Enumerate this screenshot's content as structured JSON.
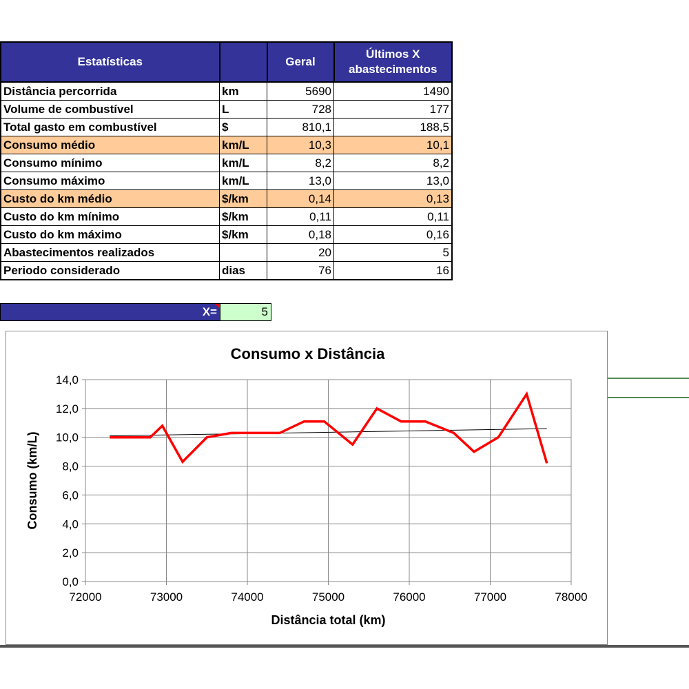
{
  "table": {
    "headers": [
      "Estatísticas",
      "",
      "Geral",
      "Últimos X abastecimentos"
    ],
    "rows": [
      {
        "label": "Distância percorrida",
        "unit": "km",
        "geral": "5690",
        "ultimos": "1490",
        "highlight": false
      },
      {
        "label": "Volume de combustível",
        "unit": "L",
        "geral": "728",
        "ultimos": "177",
        "highlight": false
      },
      {
        "label": "Total gasto em combustível",
        "unit": "$",
        "geral": "810,1",
        "ultimos": "188,5",
        "highlight": false
      },
      {
        "label": "Consumo médio",
        "unit": "km/L",
        "geral": "10,3",
        "ultimos": "10,1",
        "highlight": true
      },
      {
        "label": "Consumo mínimo",
        "unit": "km/L",
        "geral": "8,2",
        "ultimos": "8,2",
        "highlight": false
      },
      {
        "label": "Consumo máximo",
        "unit": "km/L",
        "geral": "13,0",
        "ultimos": "13,0",
        "highlight": false
      },
      {
        "label": "Custo do km médio",
        "unit": "$/km",
        "geral": "0,14",
        "ultimos": "0,13",
        "highlight": true
      },
      {
        "label": "Custo do km mínimo",
        "unit": "$/km",
        "geral": "0,11",
        "ultimos": "0,11",
        "highlight": false
      },
      {
        "label": "Custo do km máximo",
        "unit": "$/km",
        "geral": "0,18",
        "ultimos": "0,16",
        "highlight": false
      },
      {
        "label": "Abastecimentos realizados",
        "unit": "",
        "geral": "20",
        "ultimos": "5",
        "highlight": false
      },
      {
        "label": "Periodo considerado",
        "unit": "dias",
        "geral": "76",
        "ultimos": "16",
        "highlight": false
      }
    ]
  },
  "x_input": {
    "label": "X=",
    "value": "5"
  },
  "colors": {
    "header_bg": "#333399",
    "highlight_row": "#ffcc99",
    "input_bg": "#ccffcc",
    "series": "#ff0000",
    "trend": "#000000"
  },
  "chart_data": {
    "type": "line",
    "title": "Consumo x Distância",
    "xlabel": "Distância total (km)",
    "ylabel": "Consumo (km/L)",
    "xlim": [
      72000,
      78000
    ],
    "ylim": [
      0,
      14
    ],
    "x_ticks": [
      "72000",
      "73000",
      "74000",
      "75000",
      "76000",
      "77000",
      "78000"
    ],
    "y_ticks": [
      "0,0",
      "2,0",
      "4,0",
      "6,0",
      "8,0",
      "10,0",
      "12,0",
      "14,0"
    ],
    "grid": true,
    "series": [
      {
        "x": [
          72300,
          72550,
          72800,
          72950,
          73200,
          73500,
          73800,
          74100,
          74400,
          74700,
          74950,
          75300,
          75600,
          75900,
          76200,
          76550,
          76800,
          77100,
          77450,
          77700
        ],
        "y": [
          10.0,
          10.0,
          10.0,
          10.8,
          8.3,
          10.0,
          10.3,
          10.3,
          10.3,
          11.1,
          11.1,
          9.5,
          12.0,
          11.1,
          11.1,
          10.3,
          9.0,
          10.0,
          13.0,
          8.2
        ]
      }
    ],
    "trendline": {
      "x": [
        72300,
        77700
      ],
      "y": [
        10.1,
        10.6
      ]
    }
  }
}
